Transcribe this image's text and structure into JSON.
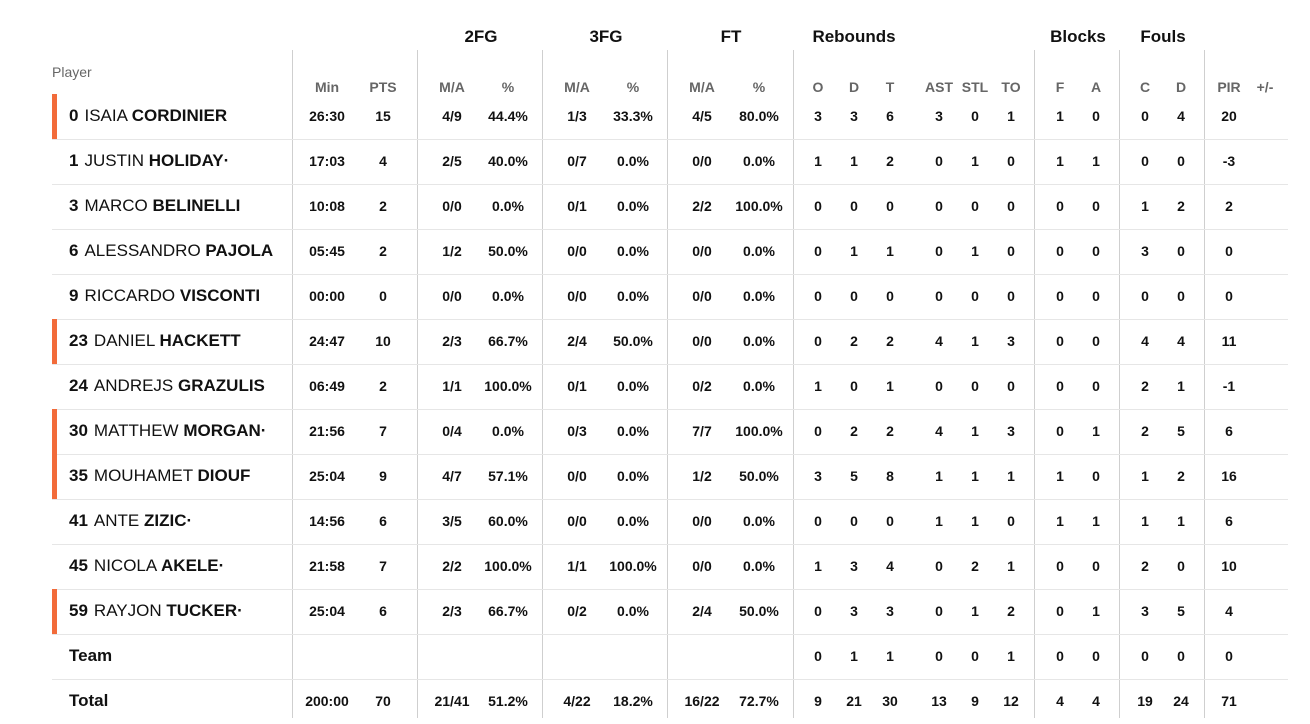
{
  "headers": {
    "player": "Player",
    "groups": [
      "2FG",
      "3FG",
      "FT",
      "Rebounds",
      "Blocks",
      "Fouls"
    ],
    "columns": [
      "Min",
      "PTS",
      "M/A",
      "%",
      "M/A",
      "%",
      "M/A",
      "%",
      "O",
      "D",
      "T",
      "AST",
      "STL",
      "TO",
      "F",
      "A",
      "C",
      "D",
      "PIR",
      "+/-"
    ]
  },
  "rows": [
    {
      "num": "0",
      "first": "ISAIA",
      "last": "CORDINIER",
      "starter": true,
      "vals": [
        "26:30",
        "15",
        "4/9",
        "44.4%",
        "1/3",
        "33.3%",
        "4/5",
        "80.0%",
        "3",
        "3",
        "6",
        "3",
        "0",
        "1",
        "1",
        "0",
        "0",
        "4",
        "20",
        ""
      ]
    },
    {
      "num": "1",
      "first": "JUSTIN",
      "last": "HOLIDAY·",
      "starter": false,
      "vals": [
        "17:03",
        "4",
        "2/5",
        "40.0%",
        "0/7",
        "0.0%",
        "0/0",
        "0.0%",
        "1",
        "1",
        "2",
        "0",
        "1",
        "0",
        "1",
        "1",
        "0",
        "0",
        "-3",
        ""
      ]
    },
    {
      "num": "3",
      "first": "MARCO",
      "last": "BELINELLI",
      "starter": false,
      "vals": [
        "10:08",
        "2",
        "0/0",
        "0.0%",
        "0/1",
        "0.0%",
        "2/2",
        "100.0%",
        "0",
        "0",
        "0",
        "0",
        "0",
        "0",
        "0",
        "0",
        "1",
        "2",
        "2",
        ""
      ]
    },
    {
      "num": "6",
      "first": "ALESSANDRO",
      "last": "PAJOLA",
      "starter": false,
      "vals": [
        "05:45",
        "2",
        "1/2",
        "50.0%",
        "0/0",
        "0.0%",
        "0/0",
        "0.0%",
        "0",
        "1",
        "1",
        "0",
        "1",
        "0",
        "0",
        "0",
        "3",
        "0",
        "0",
        ""
      ]
    },
    {
      "num": "9",
      "first": "RICCARDO",
      "last": "VISCONTI",
      "starter": false,
      "vals": [
        "00:00",
        "0",
        "0/0",
        "0.0%",
        "0/0",
        "0.0%",
        "0/0",
        "0.0%",
        "0",
        "0",
        "0",
        "0",
        "0",
        "0",
        "0",
        "0",
        "0",
        "0",
        "0",
        ""
      ]
    },
    {
      "num": "23",
      "first": "DANIEL",
      "last": "HACKETT",
      "starter": true,
      "vals": [
        "24:47",
        "10",
        "2/3",
        "66.7%",
        "2/4",
        "50.0%",
        "0/0",
        "0.0%",
        "0",
        "2",
        "2",
        "4",
        "1",
        "3",
        "0",
        "0",
        "4",
        "4",
        "11",
        ""
      ]
    },
    {
      "num": "24",
      "first": "ANDREJS",
      "last": "GRAZULIS",
      "starter": false,
      "vals": [
        "06:49",
        "2",
        "1/1",
        "100.0%",
        "0/1",
        "0.0%",
        "0/2",
        "0.0%",
        "1",
        "0",
        "1",
        "0",
        "0",
        "0",
        "0",
        "0",
        "2",
        "1",
        "-1",
        ""
      ]
    },
    {
      "num": "30",
      "first": "MATTHEW",
      "last": "MORGAN·",
      "starter": true,
      "vals": [
        "21:56",
        "7",
        "0/4",
        "0.0%",
        "0/3",
        "0.0%",
        "7/7",
        "100.0%",
        "0",
        "2",
        "2",
        "4",
        "1",
        "3",
        "0",
        "1",
        "2",
        "5",
        "6",
        ""
      ]
    },
    {
      "num": "35",
      "first": "MOUHAMET",
      "last": "DIOUF",
      "starter": true,
      "vals": [
        "25:04",
        "9",
        "4/7",
        "57.1%",
        "0/0",
        "0.0%",
        "1/2",
        "50.0%",
        "3",
        "5",
        "8",
        "1",
        "1",
        "1",
        "1",
        "0",
        "1",
        "2",
        "16",
        ""
      ]
    },
    {
      "num": "41",
      "first": "ANTE",
      "last": "ZIZIC·",
      "starter": false,
      "vals": [
        "14:56",
        "6",
        "3/5",
        "60.0%",
        "0/0",
        "0.0%",
        "0/0",
        "0.0%",
        "0",
        "0",
        "0",
        "1",
        "1",
        "0",
        "1",
        "1",
        "1",
        "1",
        "6",
        ""
      ]
    },
    {
      "num": "45",
      "first": "NICOLA",
      "last": "AKELE·",
      "starter": false,
      "vals": [
        "21:58",
        "7",
        "2/2",
        "100.0%",
        "1/1",
        "100.0%",
        "0/0",
        "0.0%",
        "1",
        "3",
        "4",
        "0",
        "2",
        "1",
        "0",
        "0",
        "2",
        "0",
        "10",
        ""
      ]
    },
    {
      "num": "59",
      "first": "RAYJON",
      "last": "TUCKER·",
      "starter": true,
      "vals": [
        "25:04",
        "6",
        "2/3",
        "66.7%",
        "0/2",
        "0.0%",
        "2/4",
        "50.0%",
        "0",
        "3",
        "3",
        "0",
        "1",
        "2",
        "0",
        "1",
        "3",
        "5",
        "4",
        ""
      ]
    },
    {
      "num": "",
      "first": "",
      "last": "Team",
      "starter": false,
      "vals": [
        "",
        "",
        "",
        "",
        "",
        "",
        "",
        "",
        "0",
        "1",
        "1",
        "0",
        "0",
        "1",
        "0",
        "0",
        "0",
        "0",
        "0",
        ""
      ]
    },
    {
      "num": "",
      "first": "",
      "last": "Total",
      "starter": false,
      "vals": [
        "200:00",
        "70",
        "21/41",
        "51.2%",
        "4/22",
        "18.2%",
        "16/22",
        "72.7%",
        "9",
        "21",
        "30",
        "13",
        "9",
        "12",
        "4",
        "4",
        "19",
        "24",
        "71",
        ""
      ]
    }
  ],
  "colors": {
    "starter_accent": "#f26b3a"
  }
}
